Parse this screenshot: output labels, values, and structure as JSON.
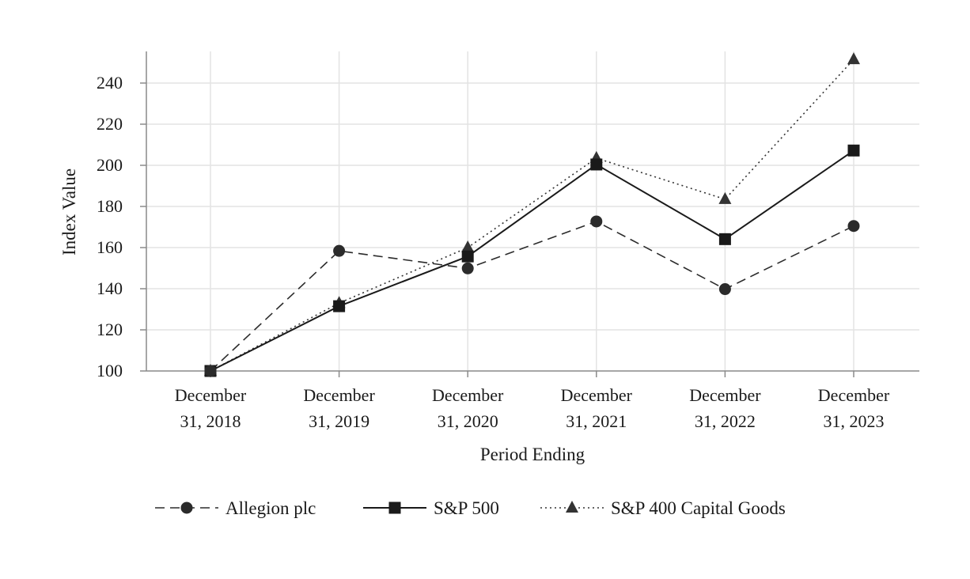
{
  "chart_data": {
    "type": "line",
    "xlabel": "Period Ending",
    "ylabel": "Index Value",
    "categories": [
      [
        "December",
        "31, 2018"
      ],
      [
        "December",
        "31, 2019"
      ],
      [
        "December",
        "31, 2020"
      ],
      [
        "December",
        "31, 2021"
      ],
      [
        "December",
        "31, 2022"
      ],
      [
        "December",
        "31, 2023"
      ]
    ],
    "ylim": [
      100,
      255
    ],
    "yticks": [
      100,
      120,
      140,
      160,
      180,
      200,
      220,
      240
    ],
    "grid": true,
    "legend_position": "bottom",
    "series": [
      {
        "name": "Allegion plc",
        "values": [
          100,
          158.4,
          149.9,
          172.7,
          139.8,
          170.5
        ],
        "marker": "circle",
        "line_style": "dashed",
        "color": "#2b2b2b"
      },
      {
        "name": "S&P 500",
        "values": [
          100,
          131.5,
          155.7,
          200.4,
          164.1,
          207.2
        ],
        "marker": "square",
        "line_style": "solid",
        "color": "#1a1a1a"
      },
      {
        "name": "S&P 400 Capital Goods",
        "values": [
          100,
          133.0,
          160.0,
          203.5,
          183.5,
          251.5
        ],
        "marker": "triangle",
        "line_style": "dotted",
        "color": "#333333"
      }
    ]
  }
}
